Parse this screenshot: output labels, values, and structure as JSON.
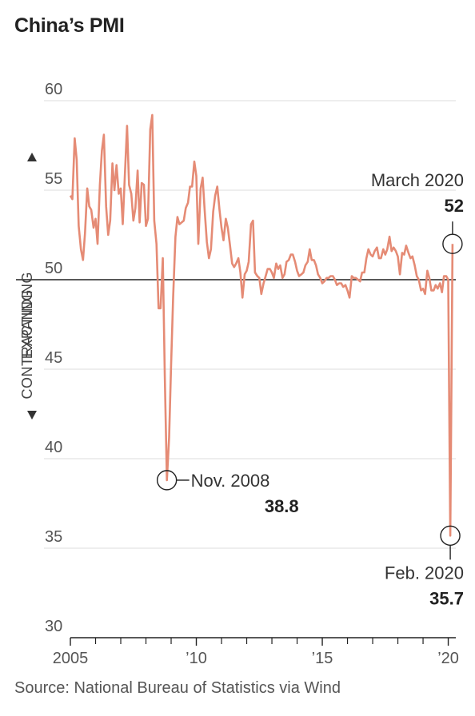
{
  "chart_data": {
    "type": "line",
    "title": "China’s PMI",
    "source": "Source: National Bureau of Statistics via Wind",
    "y_ticks": [
      "60",
      "55",
      "50",
      "45",
      "40",
      "35",
      "30"
    ],
    "y_tick_values": [
      60,
      55,
      50,
      45,
      40,
      35,
      30
    ],
    "x_tick_labels": [
      {
        "label": "2005",
        "x": 2005
      },
      {
        "label": "’10",
        "x": 2010
      },
      {
        "label": "’15",
        "x": 2015
      },
      {
        "label": "’20",
        "x": 2020
      }
    ],
    "x_minor_ticks": [
      2006,
      2007,
      2008,
      2009,
      2011,
      2012,
      2013,
      2014,
      2016,
      2017,
      2018,
      2019
    ],
    "ylim": [
      30,
      60
    ],
    "xlim": [
      2005,
      2020.3
    ],
    "grid": true,
    "reference_line": 50,
    "region_labels": {
      "upper": "EXPANDING",
      "lower": "CONTRACTING"
    },
    "color": "#e58b75",
    "annotations": [
      {
        "label": "Nov. 2008",
        "value": "38.8",
        "x": 2008.83,
        "y": 38.8
      },
      {
        "label": "March 2020",
        "value": "52",
        "x": 2020.17,
        "y": 52
      },
      {
        "label": "Feb. 2020",
        "value": "35.7",
        "x": 2020.08,
        "y": 35.7
      }
    ],
    "series": [
      {
        "points": [
          [
            2005.0,
            54.7
          ],
          [
            2005.08,
            54.5
          ],
          [
            2005.17,
            57.9
          ],
          [
            2005.25,
            56.7
          ],
          [
            2005.33,
            53.0
          ],
          [
            2005.42,
            51.7
          ],
          [
            2005.5,
            51.1
          ],
          [
            2005.58,
            52.6
          ],
          [
            2005.67,
            55.1
          ],
          [
            2005.75,
            54.1
          ],
          [
            2005.83,
            53.9
          ],
          [
            2005.92,
            52.9
          ],
          [
            2006.0,
            53.4
          ],
          [
            2006.08,
            52.0
          ],
          [
            2006.17,
            55.3
          ],
          [
            2006.25,
            57.2
          ],
          [
            2006.33,
            58.1
          ],
          [
            2006.42,
            54.1
          ],
          [
            2006.5,
            52.5
          ],
          [
            2006.58,
            53.3
          ],
          [
            2006.67,
            56.5
          ],
          [
            2006.75,
            55.0
          ],
          [
            2006.83,
            56.4
          ],
          [
            2006.92,
            54.8
          ],
          [
            2007.0,
            55.1
          ],
          [
            2007.08,
            53.1
          ],
          [
            2007.17,
            56.1
          ],
          [
            2007.25,
            58.6
          ],
          [
            2007.33,
            55.3
          ],
          [
            2007.42,
            54.8
          ],
          [
            2007.5,
            53.3
          ],
          [
            2007.58,
            54.0
          ],
          [
            2007.67,
            56.1
          ],
          [
            2007.75,
            53.2
          ],
          [
            2007.83,
            55.4
          ],
          [
            2007.92,
            55.3
          ],
          [
            2008.0,
            53.0
          ],
          [
            2008.08,
            53.4
          ],
          [
            2008.17,
            58.4
          ],
          [
            2008.25,
            59.2
          ],
          [
            2008.33,
            53.3
          ],
          [
            2008.42,
            52.0
          ],
          [
            2008.5,
            48.4
          ],
          [
            2008.58,
            48.4
          ],
          [
            2008.67,
            51.2
          ],
          [
            2008.75,
            44.6
          ],
          [
            2008.83,
            38.8
          ],
          [
            2008.92,
            41.2
          ],
          [
            2009.0,
            45.3
          ],
          [
            2009.08,
            49.0
          ],
          [
            2009.17,
            52.4
          ],
          [
            2009.25,
            53.5
          ],
          [
            2009.33,
            53.1
          ],
          [
            2009.42,
            53.2
          ],
          [
            2009.5,
            53.3
          ],
          [
            2009.58,
            54.0
          ],
          [
            2009.67,
            54.3
          ],
          [
            2009.75,
            55.2
          ],
          [
            2009.83,
            55.2
          ],
          [
            2009.92,
            56.6
          ],
          [
            2010.0,
            55.8
          ],
          [
            2010.08,
            52.0
          ],
          [
            2010.17,
            55.1
          ],
          [
            2010.25,
            55.7
          ],
          [
            2010.33,
            53.9
          ],
          [
            2010.42,
            52.1
          ],
          [
            2010.5,
            51.2
          ],
          [
            2010.58,
            51.7
          ],
          [
            2010.67,
            53.8
          ],
          [
            2010.75,
            54.7
          ],
          [
            2010.83,
            55.2
          ],
          [
            2010.92,
            53.9
          ],
          [
            2011.0,
            52.9
          ],
          [
            2011.08,
            52.2
          ],
          [
            2011.17,
            53.4
          ],
          [
            2011.25,
            52.9
          ],
          [
            2011.33,
            52.0
          ],
          [
            2011.42,
            50.9
          ],
          [
            2011.5,
            50.7
          ],
          [
            2011.58,
            50.9
          ],
          [
            2011.67,
            51.2
          ],
          [
            2011.75,
            50.4
          ],
          [
            2011.83,
            49.0
          ],
          [
            2011.92,
            50.3
          ],
          [
            2012.0,
            50.5
          ],
          [
            2012.08,
            51.0
          ],
          [
            2012.17,
            53.1
          ],
          [
            2012.25,
            53.3
          ],
          [
            2012.33,
            50.4
          ],
          [
            2012.42,
            50.2
          ],
          [
            2012.5,
            50.1
          ],
          [
            2012.58,
            49.2
          ],
          [
            2012.67,
            49.8
          ],
          [
            2012.75,
            50.2
          ],
          [
            2012.83,
            50.6
          ],
          [
            2012.92,
            50.6
          ],
          [
            2013.0,
            50.4
          ],
          [
            2013.08,
            50.1
          ],
          [
            2013.17,
            50.9
          ],
          [
            2013.25,
            50.6
          ],
          [
            2013.33,
            50.8
          ],
          [
            2013.42,
            50.1
          ],
          [
            2013.5,
            50.3
          ],
          [
            2013.58,
            51.0
          ],
          [
            2013.67,
            51.1
          ],
          [
            2013.75,
            51.4
          ],
          [
            2013.83,
            51.4
          ],
          [
            2013.92,
            51.0
          ],
          [
            2014.0,
            50.5
          ],
          [
            2014.08,
            50.2
          ],
          [
            2014.17,
            50.3
          ],
          [
            2014.25,
            50.4
          ],
          [
            2014.33,
            50.8
          ],
          [
            2014.42,
            51.0
          ],
          [
            2014.5,
            51.7
          ],
          [
            2014.58,
            51.1
          ],
          [
            2014.67,
            51.1
          ],
          [
            2014.75,
            50.8
          ],
          [
            2014.83,
            50.3
          ],
          [
            2014.92,
            50.1
          ],
          [
            2015.0,
            49.8
          ],
          [
            2015.08,
            49.9
          ],
          [
            2015.17,
            50.1
          ],
          [
            2015.25,
            50.1
          ],
          [
            2015.33,
            50.2
          ],
          [
            2015.42,
            50.2
          ],
          [
            2015.5,
            50.0
          ],
          [
            2015.58,
            49.7
          ],
          [
            2015.67,
            49.8
          ],
          [
            2015.75,
            49.8
          ],
          [
            2015.83,
            49.6
          ],
          [
            2015.92,
            49.7
          ],
          [
            2016.0,
            49.4
          ],
          [
            2016.08,
            49.0
          ],
          [
            2016.17,
            50.2
          ],
          [
            2016.25,
            50.1
          ],
          [
            2016.33,
            50.1
          ],
          [
            2016.42,
            50.0
          ],
          [
            2016.5,
            49.9
          ],
          [
            2016.58,
            50.4
          ],
          [
            2016.67,
            50.4
          ],
          [
            2016.75,
            51.2
          ],
          [
            2016.83,
            51.7
          ],
          [
            2016.92,
            51.4
          ],
          [
            2017.0,
            51.3
          ],
          [
            2017.08,
            51.6
          ],
          [
            2017.17,
            51.8
          ],
          [
            2017.25,
            51.2
          ],
          [
            2017.33,
            51.2
          ],
          [
            2017.42,
            51.7
          ],
          [
            2017.5,
            51.4
          ],
          [
            2017.58,
            51.7
          ],
          [
            2017.67,
            52.4
          ],
          [
            2017.75,
            51.6
          ],
          [
            2017.83,
            51.8
          ],
          [
            2017.92,
            51.6
          ],
          [
            2018.0,
            51.3
          ],
          [
            2018.08,
            50.3
          ],
          [
            2018.17,
            51.5
          ],
          [
            2018.25,
            51.4
          ],
          [
            2018.33,
            51.9
          ],
          [
            2018.42,
            51.5
          ],
          [
            2018.5,
            51.2
          ],
          [
            2018.58,
            51.3
          ],
          [
            2018.67,
            50.8
          ],
          [
            2018.75,
            50.2
          ],
          [
            2018.83,
            50.0
          ],
          [
            2018.92,
            49.4
          ],
          [
            2019.0,
            49.5
          ],
          [
            2019.08,
            49.2
          ],
          [
            2019.17,
            50.5
          ],
          [
            2019.25,
            50.1
          ],
          [
            2019.33,
            49.4
          ],
          [
            2019.42,
            49.4
          ],
          [
            2019.5,
            49.7
          ],
          [
            2019.58,
            49.5
          ],
          [
            2019.67,
            49.8
          ],
          [
            2019.75,
            49.3
          ],
          [
            2019.83,
            50.2
          ],
          [
            2019.92,
            50.2
          ],
          [
            2020.0,
            50.0
          ],
          [
            2020.08,
            35.7
          ],
          [
            2020.17,
            52.0
          ]
        ]
      }
    ]
  }
}
